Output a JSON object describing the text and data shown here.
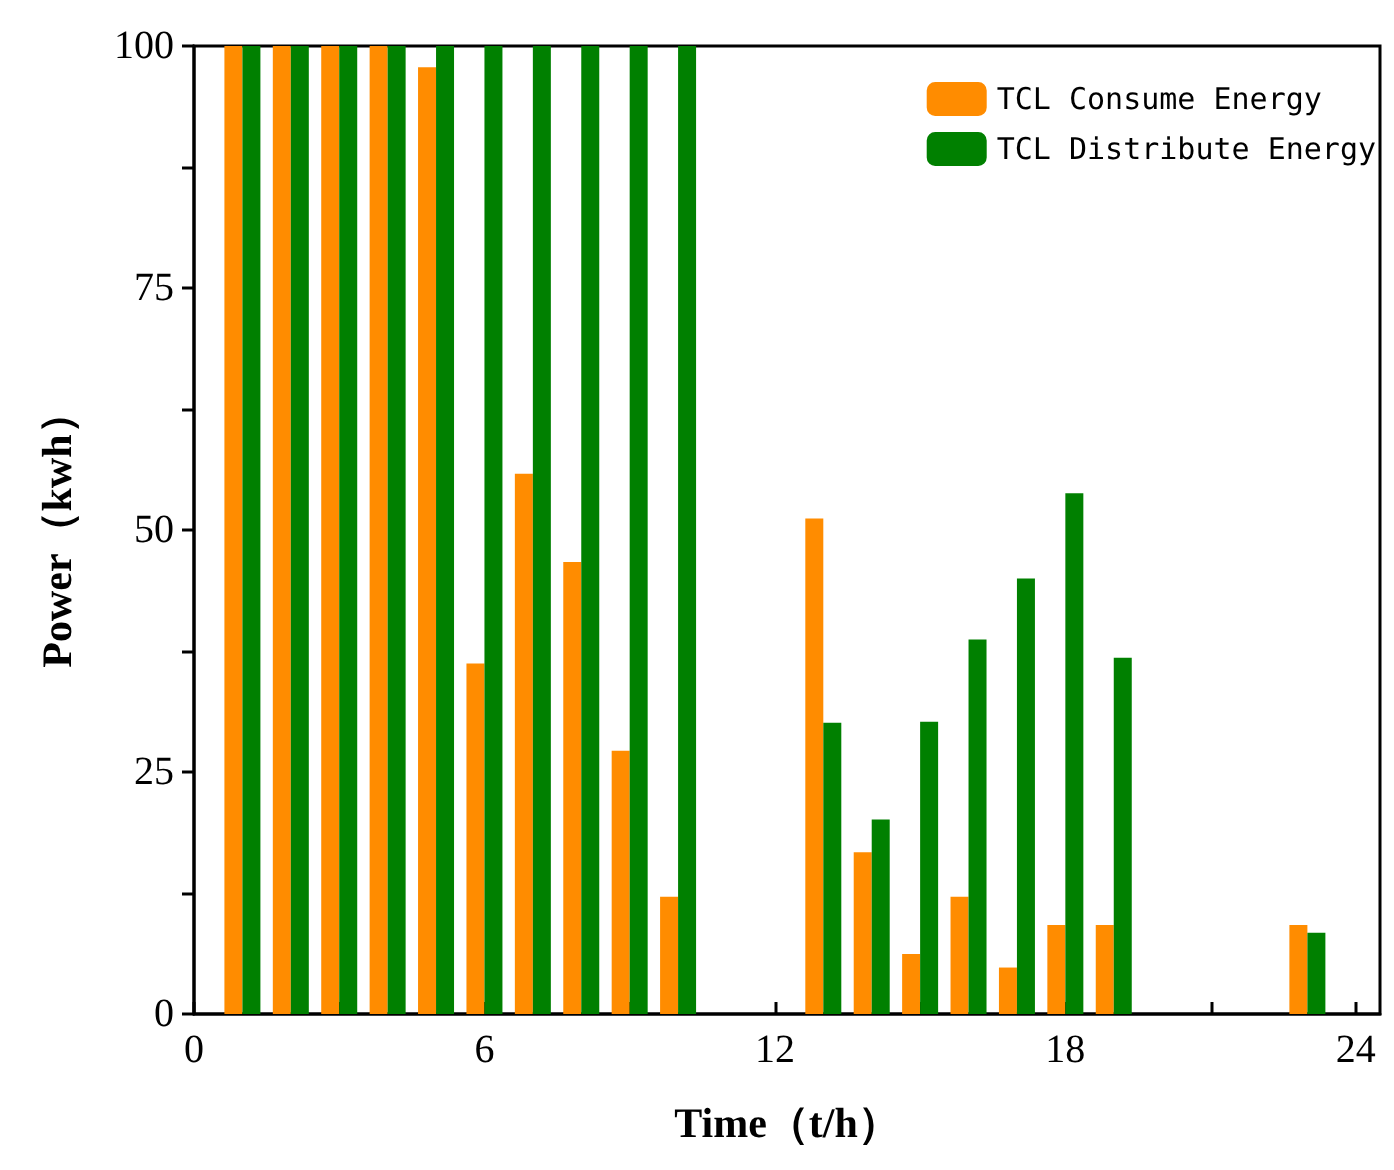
{
  "chart_data": {
    "type": "bar",
    "xlabel": "Time（t/h）",
    "ylabel": "Power（kwh）",
    "x": [
      1,
      2,
      3,
      4,
      5,
      6,
      7,
      8,
      9,
      10,
      13,
      14,
      15,
      16,
      17,
      18,
      19,
      23
    ],
    "series": [
      {
        "name": "TCL Consume Energy",
        "color": "#ff8c00",
        "values": [
          100,
          100,
          100,
          100,
          97.8,
          36.2,
          55.8,
          46.7,
          27.2,
          12.1,
          51.2,
          16.7,
          6.2,
          12.1,
          4.8,
          9.2,
          9.2,
          9.2
        ]
      },
      {
        "name": "TCL Distribute Energy",
        "color": "#008000",
        "values": [
          100,
          100,
          100,
          100,
          100,
          100,
          100,
          100,
          100,
          100,
          30.1,
          20.1,
          30.2,
          38.7,
          45.0,
          53.8,
          36.8,
          8.4
        ]
      }
    ],
    "xlim": [
      0,
      24.5
    ],
    "ylim": [
      0,
      100
    ],
    "xticks": [
      0,
      {
        "value": 3,
        "label": null
      },
      6,
      {
        "value": 9,
        "label": null
      },
      12,
      {
        "value": 15,
        "label": null
      },
      18,
      {
        "value": 21,
        "label": null
      },
      24
    ],
    "yticks": [
      0,
      {
        "value": 12.5,
        "label": null
      },
      25,
      {
        "value": 37.5,
        "label": null
      },
      50,
      {
        "value": 62.5,
        "label": null
      },
      75,
      {
        "value": 87.5,
        "label": null
      },
      100
    ],
    "legend": "top right"
  }
}
